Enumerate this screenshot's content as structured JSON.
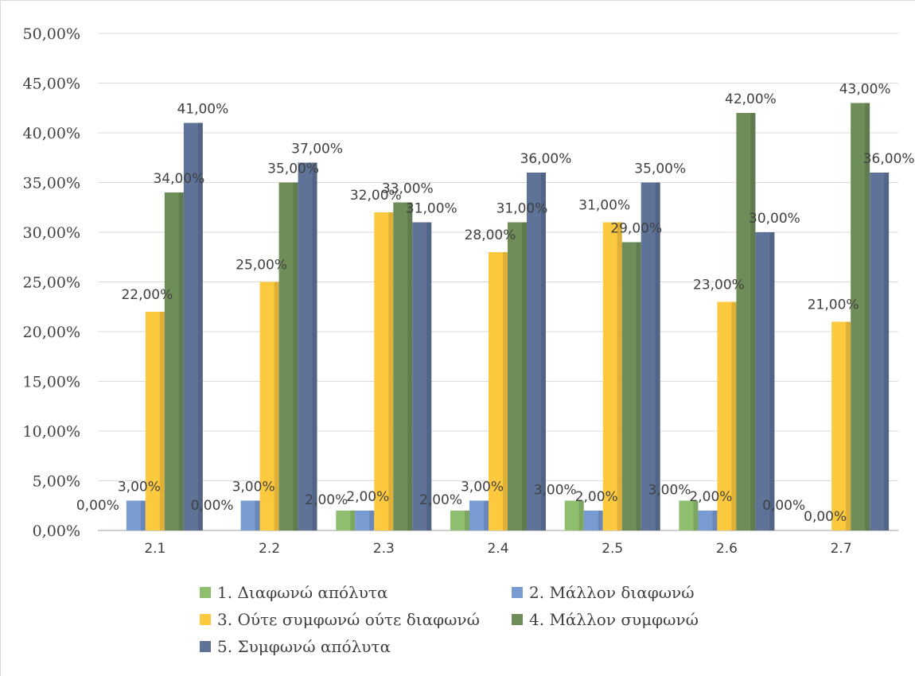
{
  "chart_data": {
    "type": "bar",
    "title": "",
    "xlabel": "",
    "ylabel": "",
    "ylim": [
      0,
      50
    ],
    "yticks": [
      "0,00%",
      "5,00%",
      "10,00%",
      "15,00%",
      "20,00%",
      "25,00%",
      "30,00%",
      "35,00%",
      "40,00%",
      "45,00%",
      "50,00%"
    ],
    "grid": true,
    "legend_position": "bottom",
    "categories": [
      "2.1",
      "2.2",
      "2.3",
      "2.4",
      "2.5",
      "2.6",
      "2.7"
    ],
    "series": [
      {
        "name": "1. Διαφωνώ απόλυτα",
        "color": "#8fbf6e",
        "values": [
          0,
          0,
          2,
          2,
          3,
          3,
          0
        ],
        "labels": [
          "0,00%",
          "0,00%",
          "2,00%",
          "2,00%",
          "3,00%",
          "3,00%",
          "0,00%"
        ]
      },
      {
        "name": "2. Μάλλον διαφωνώ",
        "color": "#7a9ad2",
        "values": [
          3,
          3,
          2,
          3,
          2,
          2,
          0
        ],
        "labels": [
          "3,00%",
          "3,00%",
          "2,00%",
          "3,00%",
          "2,00%",
          "2,00%",
          "0,00%"
        ]
      },
      {
        "name": "3. Ούτε συμφωνώ ούτε διαφωνώ",
        "color": "#fdc93f",
        "values": [
          22,
          25,
          32,
          28,
          31,
          23,
          21
        ],
        "labels": [
          "22,00%",
          "25,00%",
          "32,00%",
          "28,00%",
          "31,00%",
          "23,00%",
          "21,00%"
        ]
      },
      {
        "name": "4. Μάλλον συμφωνώ",
        "color": "#6e8d58",
        "values": [
          34,
          35,
          33,
          31,
          29,
          42,
          43
        ],
        "labels": [
          "34,00%",
          "35,00%",
          "33,00%",
          "31,00%",
          "29,00%",
          "42,00%",
          "43,00%"
        ]
      },
      {
        "name": "5. Συμφωνώ απόλυτα",
        "color": "#5f7399",
        "values": [
          41,
          37,
          31,
          36,
          35,
          30,
          36
        ],
        "labels": [
          "41,00%",
          "37,00%",
          "31,00%",
          "36,00%",
          "35,00%",
          "30,00%",
          "36,00%"
        ]
      }
    ]
  }
}
